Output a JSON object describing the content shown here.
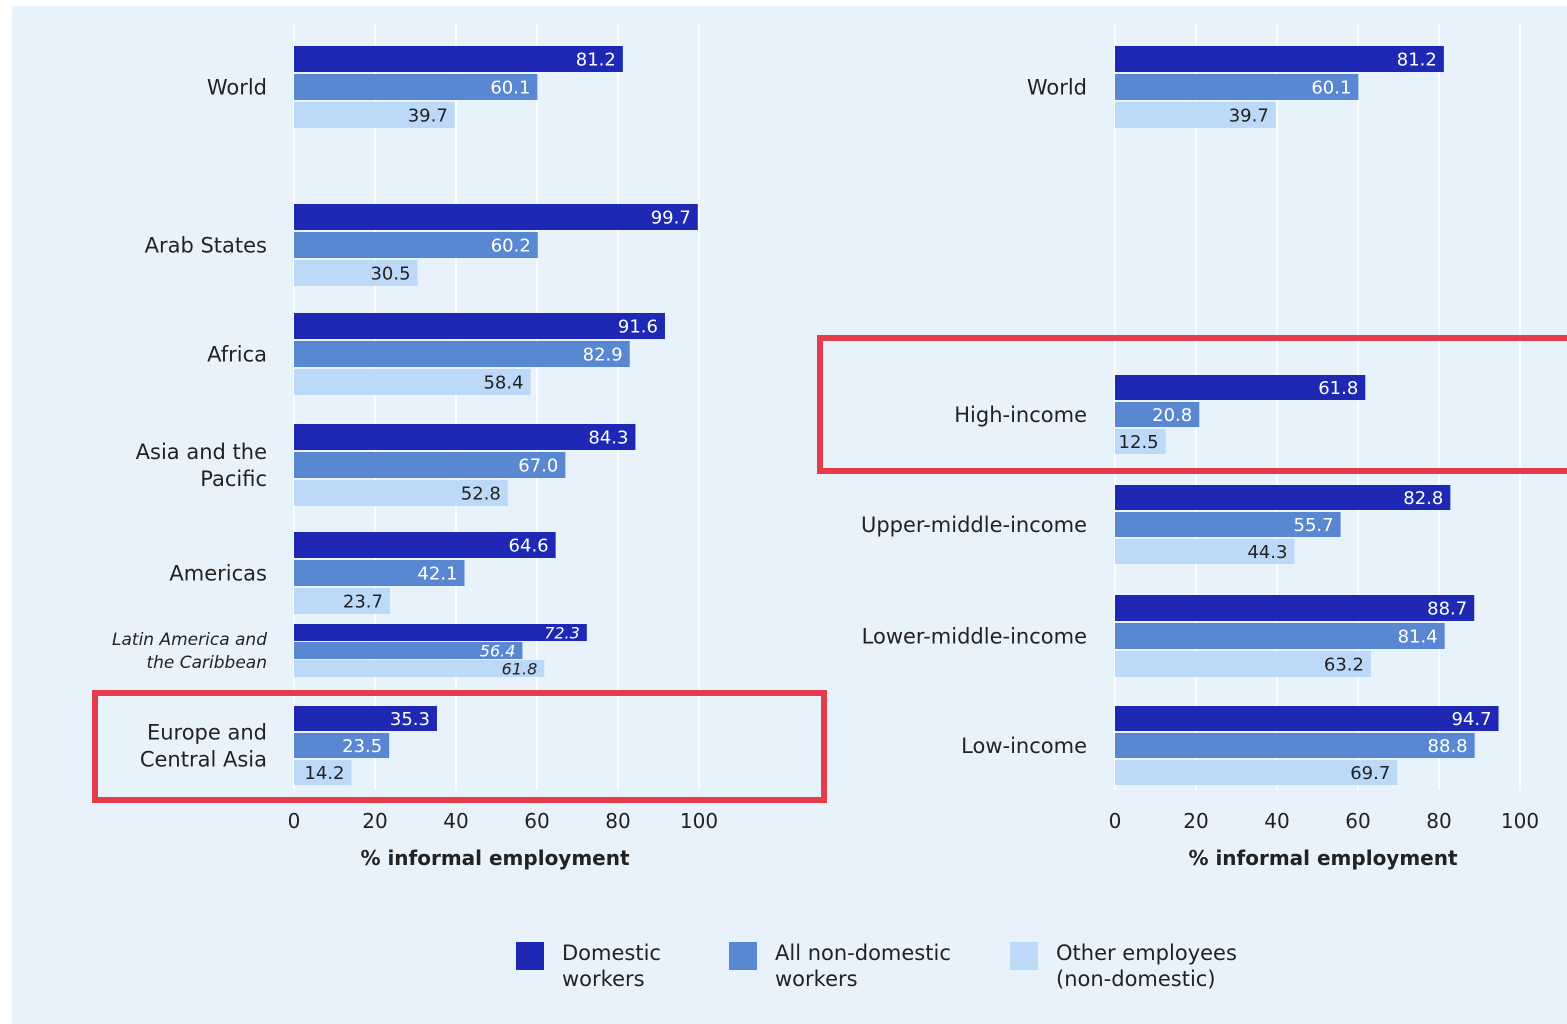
{
  "colors": {
    "background": "#e8f2fb",
    "domestic": "#1e28b4",
    "non_domestic": "#5a87d2",
    "other": "#bcdaf7",
    "gridline": "#ffffff",
    "highlight": "#e53c4b",
    "text": "#222222"
  },
  "chart_data": [
    {
      "type": "bar",
      "orientation": "horizontal",
      "categories": [
        "World",
        "Arab States",
        "Africa",
        "Asia and the Pacific",
        "Americas",
        "Latin America and the Caribbean",
        "Europe and Central Asia"
      ],
      "series": [
        {
          "name": "Domestic workers",
          "values": [
            81.2,
            99.7,
            91.6,
            84.3,
            64.6,
            72.3,
            35.3
          ]
        },
        {
          "name": "All non-domestic workers",
          "values": [
            60.1,
            60.2,
            82.9,
            67.0,
            42.1,
            56.4,
            23.5
          ]
        },
        {
          "name": "Other employees (non-domestic)",
          "values": [
            39.7,
            30.5,
            58.4,
            52.8,
            23.7,
            61.8,
            14.2
          ]
        }
      ],
      "xlabel": "% informal employment",
      "xticks": [
        "0",
        "20",
        "40",
        "60",
        "80",
        "100"
      ],
      "xlim": [
        0,
        100
      ],
      "italic_categories": [
        "Latin America and the Caribbean"
      ],
      "highlighted_categories": [
        "Europe and Central Asia"
      ],
      "grid": true
    },
    {
      "type": "bar",
      "orientation": "horizontal",
      "categories": [
        "World",
        "High-income",
        "Upper-middle-income",
        "Lower-middle-income",
        "Low-income"
      ],
      "series": [
        {
          "name": "Domestic workers",
          "values": [
            81.2,
            61.8,
            82.8,
            88.7,
            94.7
          ]
        },
        {
          "name": "All non-domestic workers",
          "values": [
            60.1,
            20.8,
            55.7,
            81.4,
            88.8
          ]
        },
        {
          "name": "Other employees (non-domestic)",
          "values": [
            39.7,
            12.5,
            44.3,
            63.2,
            69.7
          ]
        }
      ],
      "xlabel": "% informal employment",
      "xticks": [
        "0",
        "20",
        "40",
        "60",
        "80",
        "100"
      ],
      "xlim": [
        0,
        100
      ],
      "highlighted_categories": [
        "High-income"
      ],
      "grid": true
    }
  ],
  "legend": [
    {
      "label": "Domestic workers",
      "color": "#1e28b4"
    },
    {
      "label": "All non-domestic workers",
      "color": "#5a87d2"
    },
    {
      "label": "Other employees (non-domestic)",
      "color": "#bcdaf7"
    }
  ]
}
